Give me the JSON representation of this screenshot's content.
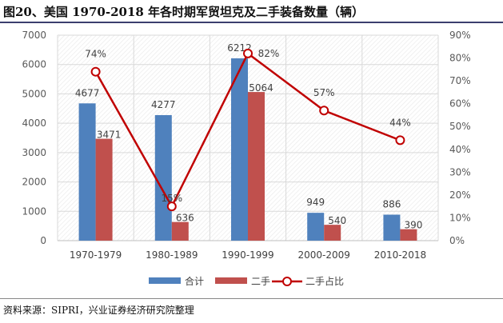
{
  "title": "图20、美国 1970-2018 年各时期军贸坦克及二手装备数量（辆）",
  "source": "资料来源：SIPRI，兴业证券经济研究院整理",
  "chart_data": {
    "type": "bar",
    "categories": [
      "1970-1979",
      "1980-1989",
      "1990-1999",
      "2000-2009",
      "2010-2018"
    ],
    "series": [
      {
        "name": "合计",
        "type": "bar",
        "axis": "left",
        "color": "#4f81bd",
        "values": [
          4677,
          4277,
          6212,
          949,
          886
        ]
      },
      {
        "name": "二手",
        "type": "bar",
        "axis": "left",
        "color": "#c0504d",
        "values": [
          3471,
          636,
          5064,
          540,
          390
        ]
      },
      {
        "name": "二手占比",
        "type": "line",
        "axis": "right",
        "color": "#c00000",
        "values": [
          74,
          15,
          82,
          57,
          44
        ],
        "labels": [
          "74%",
          "15%",
          "82%",
          "57%",
          "44%"
        ]
      }
    ],
    "ylim": [
      0,
      7000
    ],
    "yticks": [
      "0",
      "1000",
      "2000",
      "3000",
      "4000",
      "5000",
      "6000",
      "7000"
    ],
    "y2lim": [
      0,
      90
    ],
    "y2ticks": [
      "0%",
      "10%",
      "20%",
      "30%",
      "40%",
      "50%",
      "60%",
      "70%",
      "80%",
      "90%"
    ],
    "legend": "bottom",
    "grid": true
  }
}
